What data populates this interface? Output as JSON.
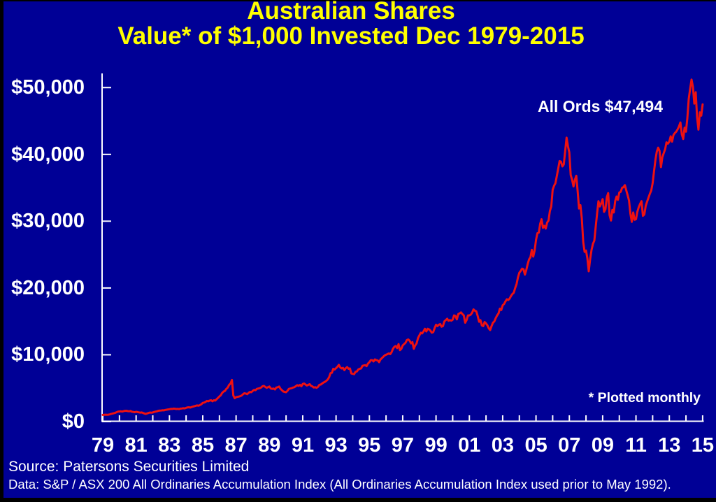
{
  "title": {
    "line1": "Australian Shares",
    "line2": "Value* of $1,000 Invested Dec 1979-2015"
  },
  "annotation": {
    "label": "All Ords $47,494"
  },
  "footnote": {
    "label": "* Plotted monthly"
  },
  "footer": {
    "source": "Source: Patersons Securities Limited",
    "data_note": "Data: S&P / ASX 200 All Ordinaries Accumulation Index (All Ordinaries Accumulation Index used prior to May 1992)."
  },
  "colors": {
    "page_border": "#000000",
    "background": "#000096",
    "line": "#ee1111",
    "title": "#ffff00",
    "axis": "#ffffff",
    "text": "#ffffff"
  },
  "chart_data": {
    "type": "line",
    "title": "Australian Shares",
    "subtitle": "Value* of $1,000 Invested Dec 1979-2015",
    "xlabel": "",
    "ylabel": "",
    "legend": [
      "All Ords"
    ],
    "grid": false,
    "x_unit": "month",
    "x_start": "Dec 1979",
    "x_end": "Dec 2015",
    "points_per_year": 12,
    "xlim_years": [
      1979.9167,
      2015.9167
    ],
    "ylim": [
      0,
      52000
    ],
    "y_tick_values": [
      0,
      10000,
      20000,
      30000,
      40000,
      50000
    ],
    "y_tick_labels": [
      "$0",
      "$10,000",
      "$20,000",
      "$30,000",
      "$40,000",
      "$50,000"
    ],
    "x_tick_years": [
      1979,
      1980,
      1981,
      1982,
      1983,
      1984,
      1985,
      1986,
      1987,
      1988,
      1989,
      1990,
      1991,
      1992,
      1993,
      1994,
      1995,
      1996,
      1997,
      1998,
      1999,
      2000,
      2001,
      2002,
      2003,
      2004,
      2005,
      2006,
      2007,
      2008,
      2009,
      2010,
      2011,
      2012,
      2013,
      2014,
      2015
    ],
    "x_tick_labels": [
      "79",
      "81",
      "83",
      "85",
      "87",
      "89",
      "91",
      "93",
      "95",
      "97",
      "99",
      "01",
      "03",
      "05",
      "07",
      "09",
      "11",
      "13",
      "15"
    ],
    "series": [
      {
        "name": "All Ords",
        "start_value": 1000,
        "final_value": 47494,
        "values": [
          1000,
          1020,
          1040,
          1010,
          1040,
          1080,
          1140,
          1200,
          1260,
          1320,
          1410,
          1500,
          1520,
          1540,
          1500,
          1560,
          1610,
          1620,
          1570,
          1540,
          1590,
          1480,
          1440,
          1400,
          1460,
          1420,
          1380,
          1340,
          1370,
          1300,
          1200,
          1150,
          1220,
          1300,
          1360,
          1330,
          1370,
          1440,
          1500,
          1540,
          1620,
          1640,
          1660,
          1700,
          1680,
          1750,
          1780,
          1820,
          1850,
          1900,
          1890,
          1950,
          1930,
          1880,
          1900,
          1870,
          1950,
          1970,
          2000,
          1980,
          2050,
          2120,
          2150,
          2100,
          2180,
          2250,
          2300,
          2380,
          2420,
          2380,
          2480,
          2600,
          2800,
          2850,
          2950,
          3100,
          3050,
          3150,
          3200,
          3050,
          3200,
          3150,
          3350,
          3550,
          3770,
          3950,
          4300,
          4500,
          4600,
          4900,
          5100,
          5500,
          5700,
          6240,
          3900,
          3500,
          3650,
          3700,
          3750,
          3800,
          3900,
          4100,
          4250,
          4200,
          4100,
          4300,
          4450,
          4400,
          4600,
          4750,
          4700,
          4900,
          4950,
          5000,
          5100,
          5300,
          5350,
          5200,
          5050,
          5150,
          5250,
          4950,
          4900,
          4950,
          4800,
          5100,
          5150,
          5250,
          4900,
          4700,
          4500,
          4450,
          4400,
          4600,
          4900,
          4950,
          5000,
          5100,
          5150,
          5300,
          5450,
          5350,
          5500,
          5300,
          5630,
          5700,
          5550,
          5400,
          5500,
          5600,
          5350,
          5250,
          5100,
          5150,
          5050,
          5200,
          5500,
          5550,
          5700,
          5850,
          5950,
          6100,
          6300,
          6650,
          7250,
          7300,
          7900,
          7800,
          8000,
          8200,
          8500,
          8100,
          7950,
          8050,
          7700,
          8000,
          8150,
          7900,
          7950,
          7200,
          7150,
          7100,
          7450,
          7500,
          7800,
          7900,
          7950,
          8350,
          8400,
          8450,
          8300,
          8700,
          8900,
          9200,
          9200,
          9000,
          9300,
          9200,
          9150,
          8900,
          9300,
          9500,
          9700,
          9900,
          10000,
          10100,
          10200,
          10100,
          10400,
          10900,
          11200,
          11300,
          11000,
          11600,
          10700,
          10900,
          11400,
          11600,
          11800,
          12200,
          12300,
          12100,
          11700,
          11900,
          10900,
          11400,
          11700,
          12500,
          12900,
          13300,
          13200,
          13500,
          13900,
          13500,
          13900,
          13800,
          13600,
          13300,
          13400,
          14000,
          14500,
          14300,
          14500,
          14600,
          14200,
          14300,
          15000,
          15200,
          15400,
          15100,
          15200,
          15100,
          15250,
          15900,
          15800,
          15300,
          16100,
          16200,
          16350,
          16100,
          15900,
          14800,
          15200,
          15900,
          15900,
          16000,
          16300,
          16800,
          16600,
          16500,
          15800,
          14950,
          15200,
          14400,
          14300,
          14900,
          14700,
          14400,
          13950,
          13700,
          14300,
          14800,
          15000,
          15500,
          15900,
          16200,
          16900,
          16700,
          17400,
          17600,
          18000,
          18300,
          18200,
          18400,
          18800,
          19100,
          19300,
          20000,
          20600,
          21600,
          22300,
          22550,
          22900,
          22800,
          22000,
          22700,
          23600,
          24300,
          24600,
          25700,
          24700,
          25600,
          27200,
          28200,
          28300,
          29600,
          30300,
          29000,
          29300,
          28900,
          29800,
          30100,
          31500,
          32200,
          34700,
          35300,
          35700,
          36800,
          37900,
          39000,
          38900,
          38200,
          38500,
          40500,
          42500,
          41200,
          40300,
          36900,
          36200,
          35200,
          36200,
          36800,
          34400,
          31900,
          32400,
          30400,
          26900,
          25400,
          25600,
          24400,
          22500,
          24300,
          25700,
          26600,
          27100,
          29200,
          31200,
          33000,
          32200,
          32700,
          33300,
          31400,
          31800,
          33600,
          34200,
          30900,
          30100,
          31700,
          31300,
          33000,
          33700,
          33200,
          34300,
          34400,
          35000,
          35100,
          35400,
          34600,
          33900,
          33100,
          31100,
          29900,
          31300,
          30200,
          30300,
          31400,
          32100,
          32600,
          33000,
          30800,
          31000,
          32300,
          32900,
          33500,
          34100,
          34600,
          35700,
          37500,
          39200,
          40400,
          41000,
          40500,
          38100,
          39600,
          40200,
          40800,
          41800,
          41600,
          41900,
          42700,
          41900,
          42900,
          43200,
          43400,
          43750,
          44200,
          44770,
          43000,
          42300,
          44000,
          43400,
          45400,
          48300,
          49800,
          51200,
          50100,
          47600,
          49300,
          45600,
          43700,
          46300,
          45800,
          47494
        ]
      }
    ]
  }
}
